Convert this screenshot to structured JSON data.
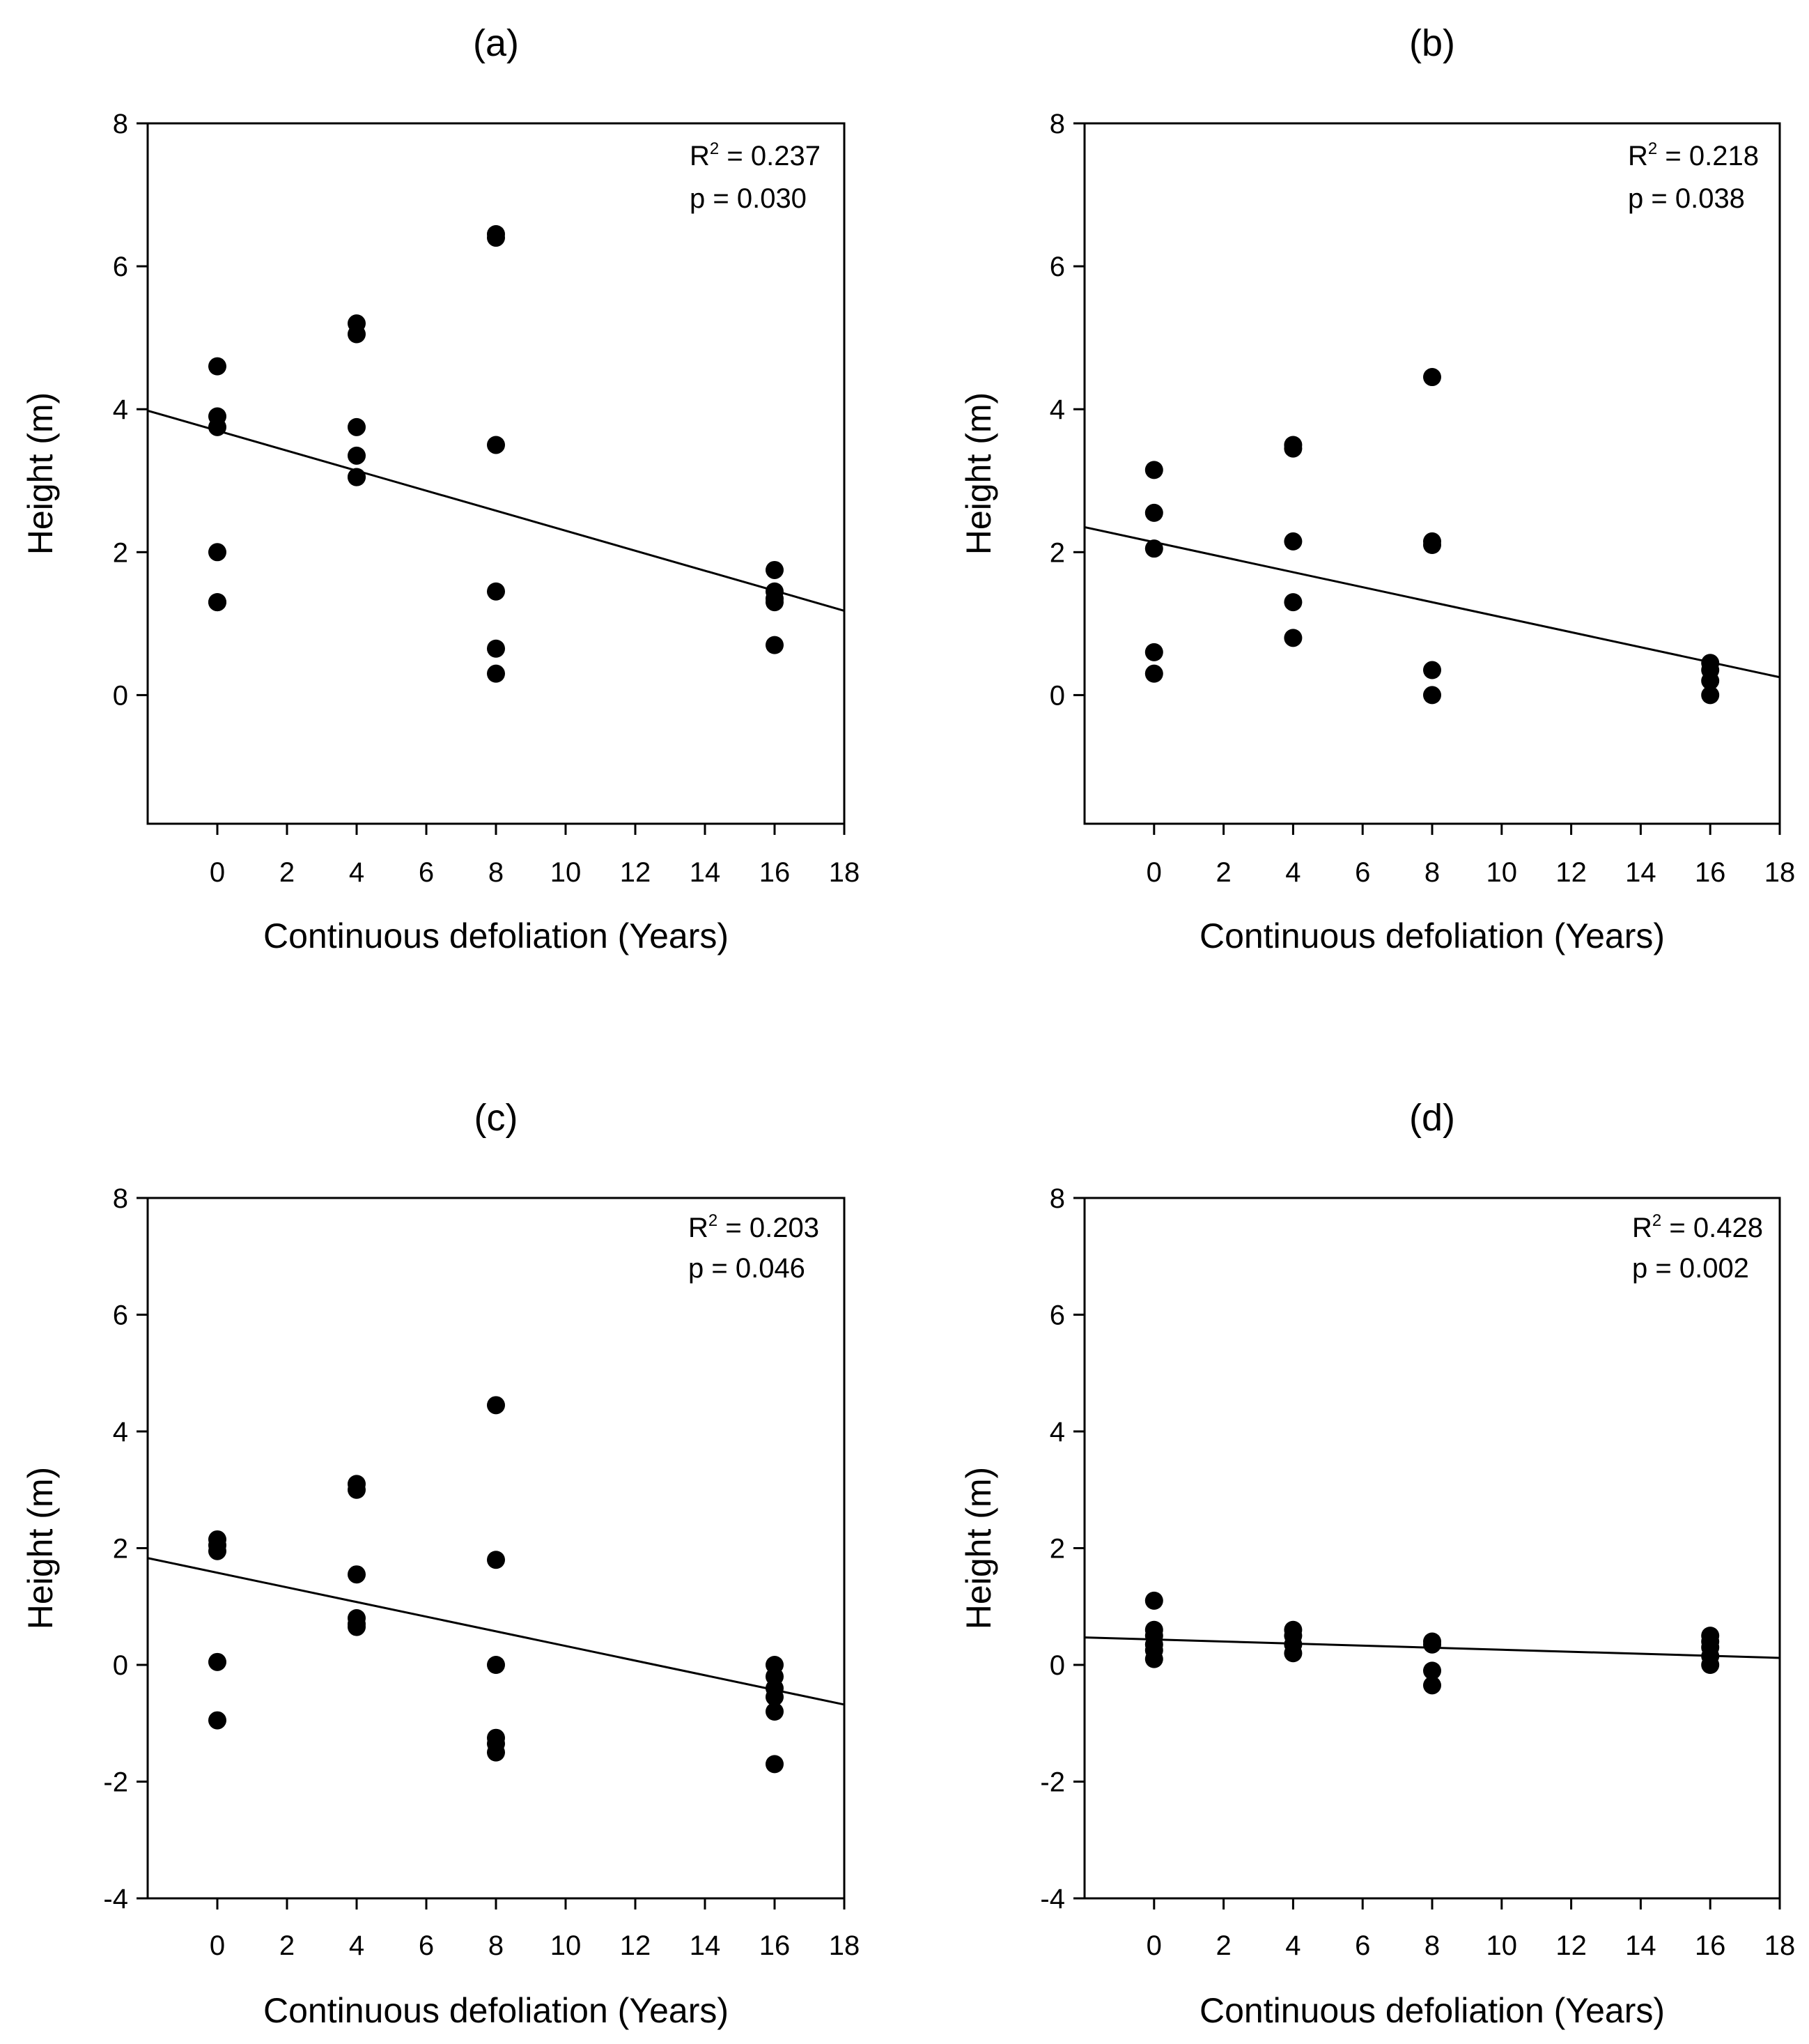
{
  "chart_data": [
    {
      "type": "scatter",
      "panel_label": "(a)",
      "xlabel": "Continuous defoliation (Years)",
      "ylabel": "Height (m)",
      "xlim": [
        -2,
        18
      ],
      "ylim": [
        -1.8,
        8
      ],
      "xticks": [
        0,
        2,
        4,
        6,
        8,
        10,
        12,
        14,
        16,
        18
      ],
      "yticks": [
        0,
        2,
        4,
        6,
        8
      ],
      "x": [
        0,
        0,
        0,
        0,
        0,
        0,
        4,
        4,
        4,
        4,
        4,
        4,
        8,
        8,
        8,
        8,
        8,
        8,
        16,
        16,
        16,
        16,
        16
      ],
      "y": [
        4.6,
        3.9,
        3.75,
        2.0,
        1.3,
        1.3,
        5.2,
        5.05,
        3.75,
        3.35,
        3.05,
        3.05,
        6.45,
        6.4,
        3.5,
        1.45,
        0.65,
        0.3,
        1.75,
        1.45,
        1.35,
        1.3,
        0.7
      ],
      "regression": {
        "x": [
          -2,
          18
        ],
        "y": [
          3.98,
          1.18
        ]
      },
      "r2_label": "R",
      "r2_exp": "2",
      "r2_value": " = 0.237",
      "p_text": "p = 0.030"
    },
    {
      "type": "scatter",
      "panel_label": "(b)",
      "xlabel": "Continuous defoliation (Years)",
      "ylabel": "Height (m)",
      "xlim": [
        -2,
        18
      ],
      "ylim": [
        -1.8,
        8
      ],
      "xticks": [
        0,
        2,
        4,
        6,
        8,
        10,
        12,
        14,
        16,
        18
      ],
      "yticks": [
        0,
        2,
        4,
        6,
        8
      ],
      "x": [
        0,
        0,
        0,
        0,
        0,
        4,
        4,
        4,
        4,
        4,
        8,
        8,
        8,
        8,
        8,
        16,
        16,
        16,
        16
      ],
      "y": [
        3.15,
        2.55,
        2.05,
        0.6,
        0.3,
        3.5,
        3.45,
        2.15,
        1.3,
        0.8,
        4.45,
        2.15,
        2.1,
        0.35,
        0.0,
        0.45,
        0.35,
        0.2,
        0.0
      ],
      "regression": {
        "x": [
          -2,
          18
        ],
        "y": [
          2.35,
          0.25
        ]
      },
      "r2_label": "R",
      "r2_exp": "2",
      "r2_value": " = 0.218",
      "p_text": "p = 0.038"
    },
    {
      "type": "scatter",
      "panel_label": "(c)",
      "xlabel": "Continuous defoliation (Years)",
      "ylabel": "Height (m)",
      "xlim": [
        -2,
        18
      ],
      "ylim": [
        -4,
        8
      ],
      "xticks": [
        0,
        2,
        4,
        6,
        8,
        10,
        12,
        14,
        16,
        18
      ],
      "yticks": [
        -4,
        -2,
        0,
        2,
        4,
        6,
        8
      ],
      "x": [
        0,
        0,
        0,
        0,
        0,
        4,
        4,
        4,
        4,
        4,
        4,
        8,
        8,
        8,
        8,
        8,
        8,
        16,
        16,
        16,
        16,
        16,
        16
      ],
      "y": [
        2.15,
        2.05,
        1.95,
        0.05,
        -0.95,
        3.1,
        3.0,
        1.55,
        0.8,
        0.7,
        0.65,
        4.45,
        1.8,
        0.0,
        -1.25,
        -1.35,
        -1.5,
        0.0,
        -0.2,
        -0.4,
        -0.55,
        -0.8,
        -1.7
      ],
      "regression": {
        "x": [
          -2,
          18
        ],
        "y": [
          1.83,
          -0.68
        ]
      },
      "r2_label": "R",
      "r2_exp": "2",
      "r2_value": " = 0.203",
      "p_text": "p = 0.046"
    },
    {
      "type": "scatter",
      "panel_label": "(d)",
      "xlabel": "Continuous defoliation (Years)",
      "ylabel": "Height (m)",
      "xlim": [
        -2,
        18
      ],
      "ylim": [
        -4,
        8
      ],
      "xticks": [
        0,
        2,
        4,
        6,
        8,
        10,
        12,
        14,
        16,
        18
      ],
      "yticks": [
        -4,
        -2,
        0,
        2,
        4,
        6,
        8
      ],
      "x": [
        0,
        0,
        0,
        0,
        0,
        0,
        4,
        4,
        4,
        4,
        8,
        8,
        8,
        8,
        16,
        16,
        16,
        16,
        16
      ],
      "y": [
        1.1,
        0.6,
        0.5,
        0.35,
        0.25,
        0.1,
        0.6,
        0.5,
        0.35,
        0.2,
        0.4,
        0.35,
        -0.1,
        -0.35,
        0.5,
        0.4,
        0.3,
        0.15,
        0.0
      ],
      "regression": {
        "x": [
          -2,
          18
        ],
        "y": [
          0.47,
          0.12
        ]
      },
      "r2_label": "R",
      "r2_exp": "2",
      "r2_value": " = 0.428",
      "p_text": "p = 0.002"
    }
  ]
}
